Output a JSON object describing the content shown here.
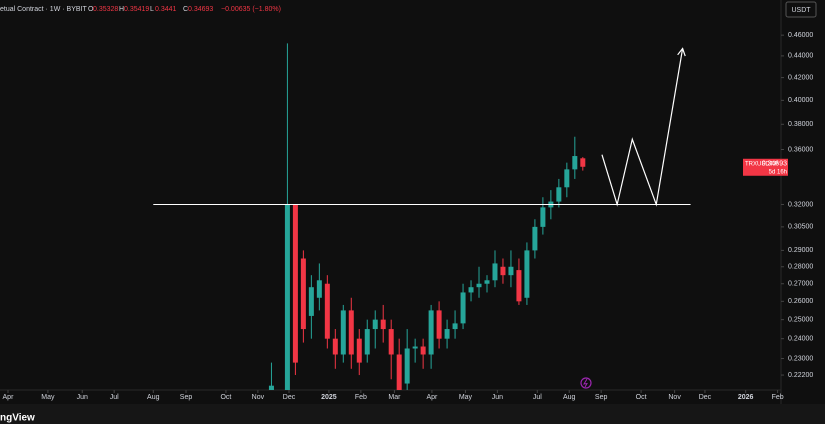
{
  "header": {
    "title": "etual Contract · 1W · BYBIT",
    "o": "O",
    "h": "H",
    "l": "L",
    "c": "C",
    "change": "−0.00635 (−1.80%)"
  },
  "currency_button": "USDT",
  "price_tag": {
    "symbol": "TRXUSDT.P",
    "countdown": "5d 16h"
  },
  "footer_brand": "ngView",
  "chart_data": {
    "type": "candlestick",
    "x": [
      33,
      35,
      36,
      37,
      38,
      39,
      40,
      41,
      42,
      43,
      44,
      45,
      46,
      47,
      48,
      49,
      50,
      51,
      52,
      53,
      54,
      55,
      56,
      57,
      58,
      59,
      60,
      61,
      62,
      63,
      64,
      65,
      66,
      67,
      68,
      69,
      70,
      71,
      72
    ],
    "open": [
      0.215,
      0.215,
      0.32,
      0.285,
      0.252,
      0.262,
      0.27,
      0.24,
      0.232,
      0.255,
      0.24,
      0.232,
      0.245,
      0.25,
      0.245,
      0.232,
      0.218,
      0.235,
      0.236,
      0.232,
      0.255,
      0.24,
      0.245,
      0.248,
      0.265,
      0.268,
      0.27,
      0.272,
      0.28,
      0.275,
      0.278,
      0.262,
      0.29,
      0.305,
      0.318,
      0.322,
      0.332,
      0.345,
      0.35328
    ],
    "high": [
      0.228,
      0.452,
      0.32,
      0.29,
      0.275,
      0.282,
      0.275,
      0.245,
      0.258,
      0.262,
      0.245,
      0.25,
      0.255,
      0.258,
      0.25,
      0.24,
      0.245,
      0.24,
      0.24,
      0.258,
      0.26,
      0.25,
      0.255,
      0.27,
      0.272,
      0.28,
      0.275,
      0.29,
      0.285,
      0.29,
      0.285,
      0.295,
      0.31,
      0.325,
      0.33,
      0.338,
      0.35,
      0.37,
      0.35419
    ],
    "low": [
      0.215,
      0.215,
      0.222,
      0.238,
      0.24,
      0.255,
      0.235,
      0.225,
      0.228,
      0.225,
      0.222,
      0.228,
      0.235,
      0.238,
      0.22,
      0.215,
      0.215,
      0.228,
      0.225,
      0.225,
      0.235,
      0.235,
      0.24,
      0.245,
      0.26,
      0.262,
      0.265,
      0.268,
      0.27,
      0.268,
      0.258,
      0.258,
      0.285,
      0.3,
      0.31,
      0.318,
      0.325,
      0.338,
      0.3441
    ],
    "close": [
      0.217,
      0.32,
      0.228,
      0.245,
      0.268,
      0.272,
      0.24,
      0.232,
      0.255,
      0.232,
      0.228,
      0.245,
      0.25,
      0.245,
      0.232,
      0.215,
      0.235,
      0.236,
      0.232,
      0.255,
      0.24,
      0.245,
      0.248,
      0.265,
      0.268,
      0.27,
      0.272,
      0.282,
      0.275,
      0.28,
      0.26,
      0.29,
      0.305,
      0.318,
      0.322,
      0.332,
      0.345,
      0.355,
      0.34693
    ],
    "up_color": "#26a69a",
    "down_color": "#f23645",
    "log_scale": true,
    "xlim": [
      -1,
      96.7
    ],
    "ylim": [
      0.215,
      0.496
    ],
    "xticks": [
      {
        "value": 0,
        "label": "Apr"
      },
      {
        "value": 5,
        "label": "May"
      },
      {
        "value": 9.3,
        "label": "Jun"
      },
      {
        "value": 13.3,
        "label": "Jul"
      },
      {
        "value": 18.2,
        "label": "Aug"
      },
      {
        "value": 22.3,
        "label": "Sep"
      },
      {
        "value": 27.3,
        "label": "Oct"
      },
      {
        "value": 31.3,
        "label": "Nov"
      },
      {
        "value": 35.2,
        "label": "Dec"
      },
      {
        "value": 40.2,
        "label": "2025"
      },
      {
        "value": 44.2,
        "label": "Feb"
      },
      {
        "value": 48.4,
        "label": "Mar"
      },
      {
        "value": 53.1,
        "label": "Apr"
      },
      {
        "value": 57.3,
        "label": "May"
      },
      {
        "value": 61.3,
        "label": "Jun"
      },
      {
        "value": 66.3,
        "label": "Jul"
      },
      {
        "value": 70.3,
        "label": "Aug"
      },
      {
        "value": 74.3,
        "label": "Sep"
      },
      {
        "value": 79.3,
        "label": "Oct"
      },
      {
        "value": 83.5,
        "label": "Nov"
      },
      {
        "value": 87.3,
        "label": "Dec"
      },
      {
        "value": 92.4,
        "label": "2026"
      },
      {
        "value": 96.4,
        "label": "Feb"
      }
    ],
    "yticks": [
      {
        "value": 0.46,
        "label": "0.46000"
      },
      {
        "value": 0.44,
        "label": "0.44000"
      },
      {
        "value": 0.42,
        "label": "0.42000"
      },
      {
        "value": 0.4,
        "label": "0.40000"
      },
      {
        "value": 0.38,
        "label": "0.38000"
      },
      {
        "value": 0.36,
        "label": "0.36000"
      },
      {
        "value": 0.32,
        "label": "0.32000"
      },
      {
        "value": 0.305,
        "label": "0.30500"
      },
      {
        "value": 0.29,
        "label": "0.29000"
      },
      {
        "value": 0.28,
        "label": "0.28000"
      },
      {
        "value": 0.27,
        "label": "0.27000"
      },
      {
        "value": 0.26,
        "label": "0.26000"
      },
      {
        "value": 0.25,
        "label": "0.25000"
      },
      {
        "value": 0.24,
        "label": "0.24000"
      },
      {
        "value": 0.23,
        "label": "0.23000"
      },
      {
        "value": 0.222,
        "label": "0.22200"
      }
    ],
    "hline": {
      "value": 0.32,
      "x": [
        18.2,
        85.5
      ],
      "color": "#ffffff"
    },
    "projection": {
      "x": [
        74.4,
        76.3,
        78.2,
        81.2,
        84.5
      ],
      "y": [
        0.356,
        0.32,
        0.368,
        0.32,
        0.447
      ],
      "color": "#ffffff"
    }
  }
}
